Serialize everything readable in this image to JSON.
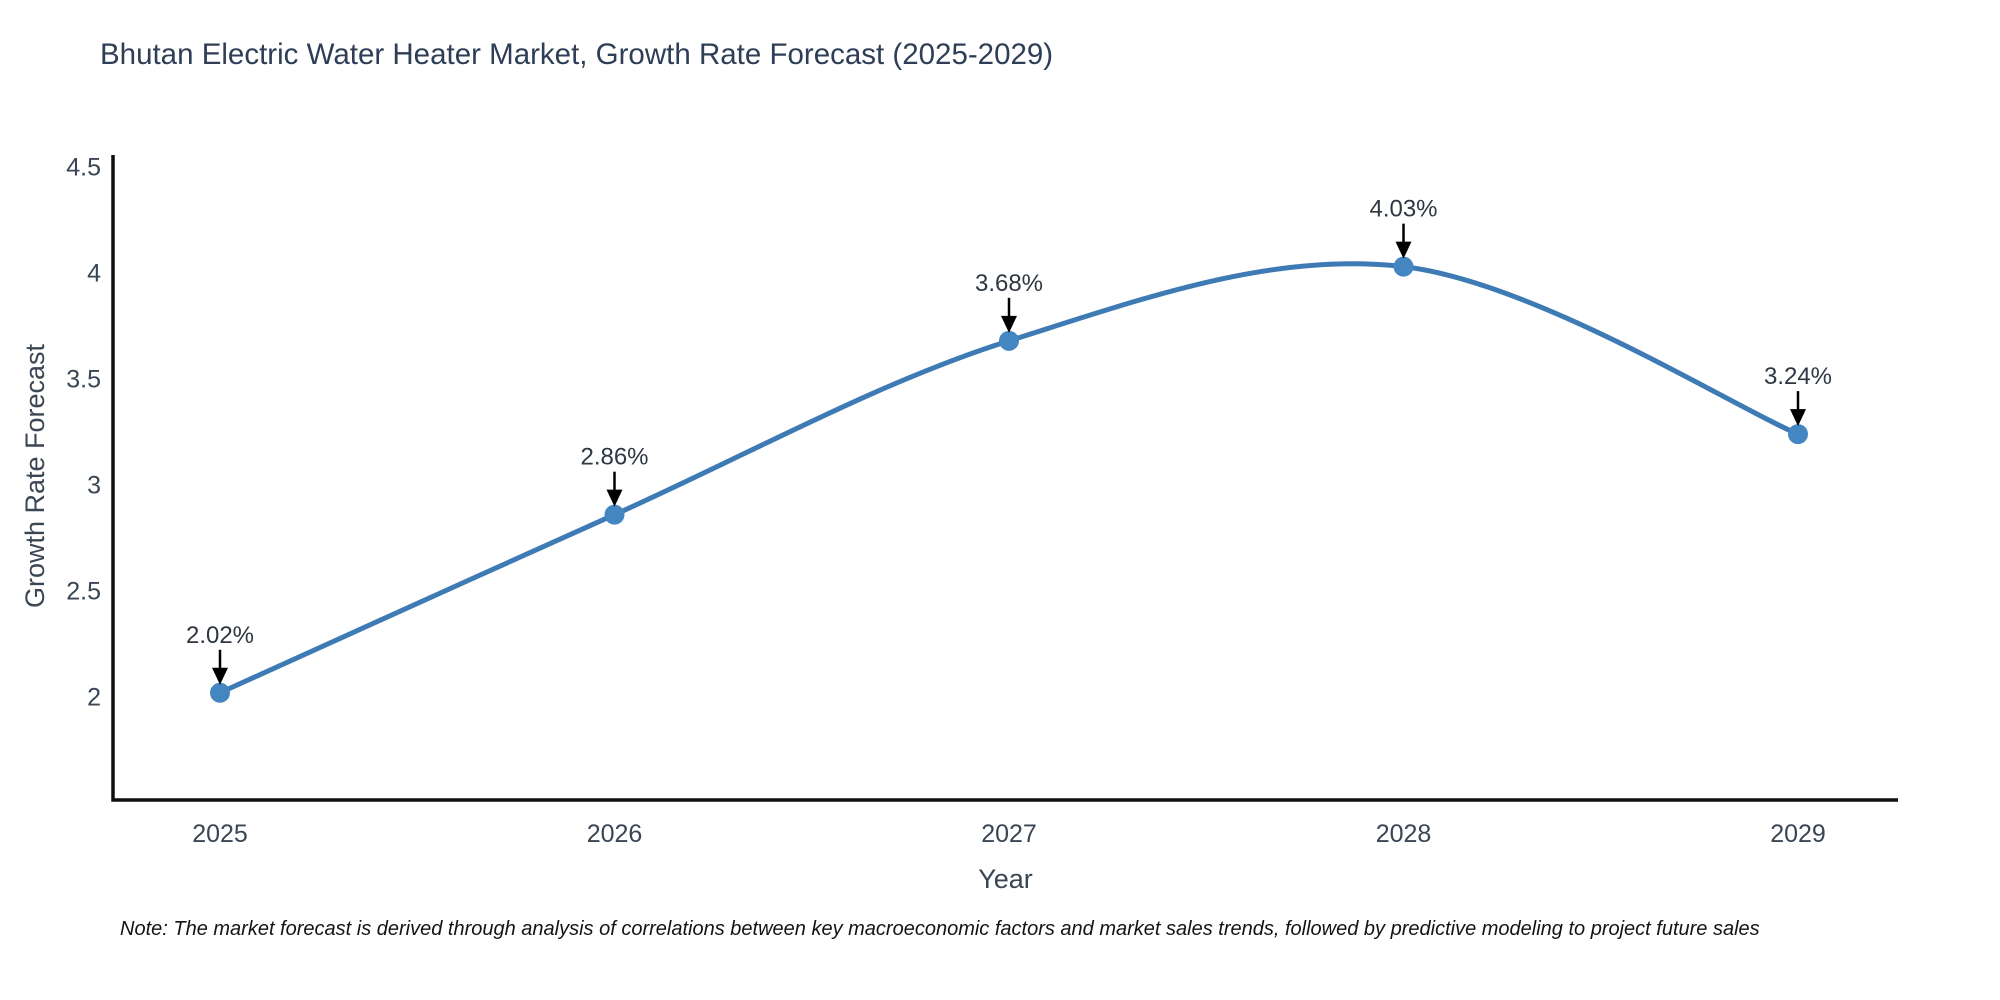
{
  "title": "Bhutan Electric Water Heater Market, Growth Rate Forecast (2025-2029)",
  "note": "Note: The market forecast is derived through analysis of correlations between key macroeconomic factors and market sales trends, followed by predictive modeling to project future sales",
  "chart_data": {
    "type": "line",
    "line_shape": "spline",
    "title": "Bhutan Electric Water Heater Market, Growth Rate Forecast (2025-2029)",
    "categories": [
      "2025",
      "2026",
      "2027",
      "2028",
      "2029"
    ],
    "values": [
      2.02,
      2.86,
      3.68,
      4.03,
      3.24
    ],
    "point_labels": [
      "2.02%",
      "2.86%",
      "3.68%",
      "4.03%",
      "3.24%"
    ],
    "xlabel": "Year",
    "ylabel": "Growth Rate Forecast",
    "y_ticks": [
      2,
      2.5,
      3,
      3.5,
      4,
      4.5
    ],
    "ylim": [
      1.51,
      4.56
    ],
    "grid": false,
    "legend": "none",
    "annotations": "arrow-down-to-point",
    "colors": {
      "line": "#3e7bb5",
      "marker": "#4486c1",
      "axis": "#0f0f0f",
      "tick_text": "#3a4654",
      "axis_title_text": "#3a4654",
      "title_text": "#2d3e56",
      "annotation_text": "#2e3742",
      "arrow": "#000000",
      "background": "#ffffff"
    }
  }
}
